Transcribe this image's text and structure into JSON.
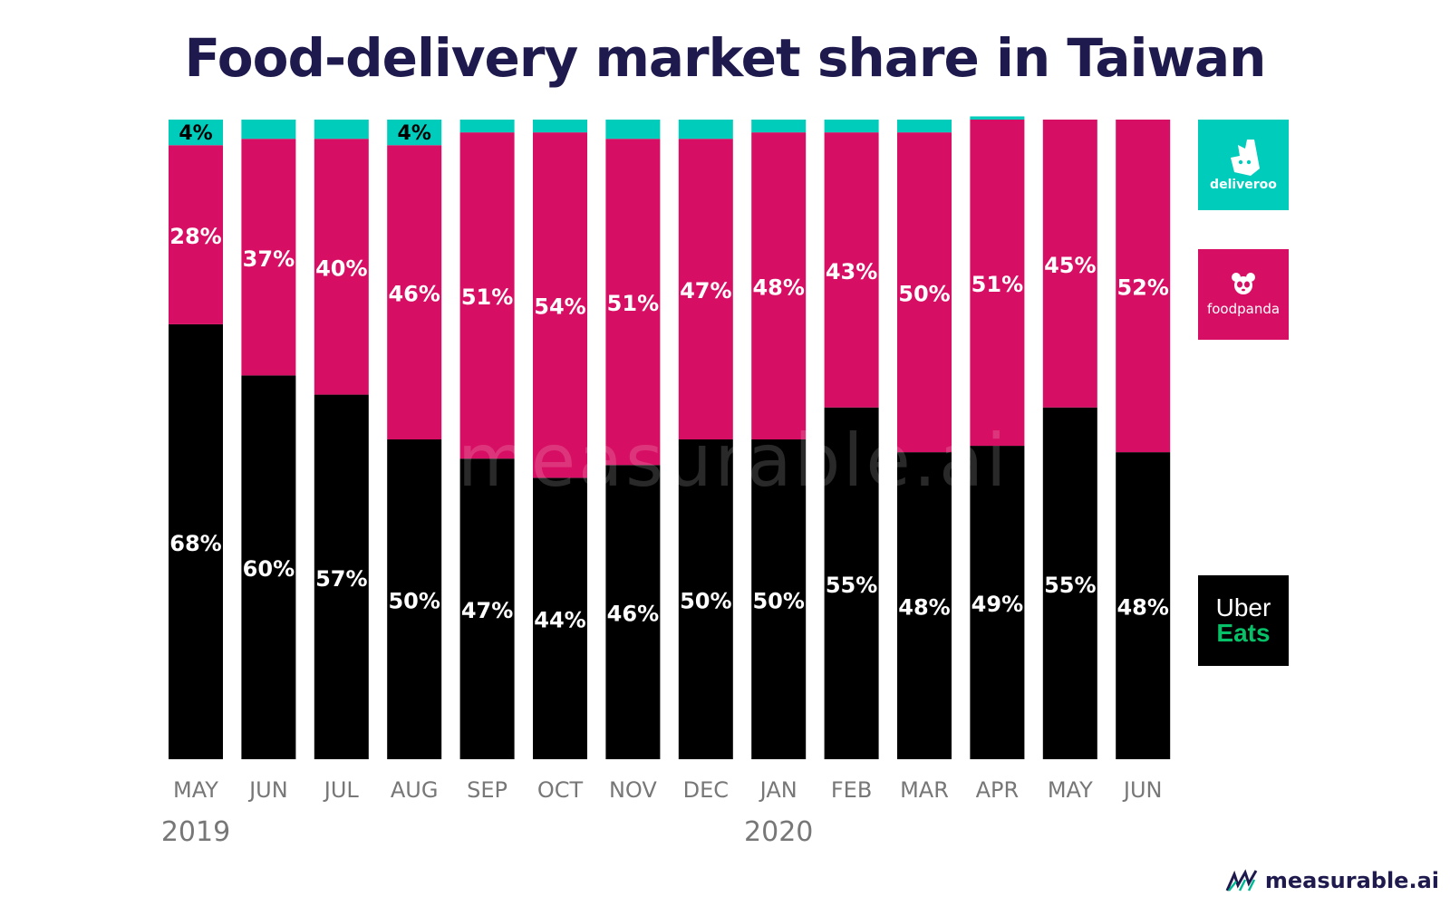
{
  "title": "Food-delivery market share in Taiwan",
  "watermark": "measurable.ai",
  "brand": {
    "name": "measurable.ai",
    "icon": "measurable-ai-logo-icon"
  },
  "legend": [
    {
      "name": "deliveroo",
      "color": "#00ccbc",
      "icon": "deliveroo-kangaroo-icon"
    },
    {
      "name": "foodpanda",
      "color": "#d70f64",
      "icon": "panda-icon"
    },
    {
      "name": "Uber Eats",
      "line1": "Uber",
      "line2": "Eats",
      "color": "#000000"
    }
  ],
  "chart_data": {
    "type": "bar",
    "stacked": true,
    "categories": [
      "MAY",
      "JUN",
      "JUL",
      "AUG",
      "SEP",
      "OCT",
      "NOV",
      "DEC",
      "JAN",
      "FEB",
      "MAR",
      "APR",
      "MAY",
      "JUN"
    ],
    "year_labels": [
      {
        "index": 0,
        "label": "2019"
      },
      {
        "index": 8,
        "label": "2020"
      }
    ],
    "series": [
      {
        "name": "Uber Eats",
        "color": "#000000",
        "values": [
          68,
          60,
          57,
          50,
          47,
          44,
          46,
          50,
          50,
          55,
          48,
          49,
          55,
          48
        ]
      },
      {
        "name": "foodpanda",
        "color": "#d70f64",
        "values": [
          28,
          37,
          40,
          46,
          51,
          54,
          51,
          47,
          48,
          43,
          50,
          51,
          45,
          52
        ]
      },
      {
        "name": "deliveroo",
        "color": "#00ccbc",
        "values": [
          4,
          3,
          3,
          4,
          2,
          2,
          3,
          3,
          2,
          2,
          2,
          0.5,
          0,
          0
        ]
      }
    ],
    "value_labels": {
      "Uber Eats": [
        "68%",
        "60%",
        "57%",
        "50%",
        "47%",
        "44%",
        "46%",
        "50%",
        "50%",
        "55%",
        "48%",
        "49%",
        "55%",
        "48%"
      ],
      "foodpanda": [
        "28%",
        "37%",
        "40%",
        "46%",
        "51%",
        "54%",
        "51%",
        "47%",
        "48%",
        "43%",
        "50%",
        "51%",
        "45%",
        "52%"
      ],
      "deliveroo": [
        "4%",
        "",
        "",
        "4%",
        "",
        "",
        "",
        "",
        "",
        "",
        "",
        "",
        "",
        ""
      ]
    },
    "ylim": [
      0,
      100
    ],
    "grid": false,
    "legend_position": "right"
  }
}
